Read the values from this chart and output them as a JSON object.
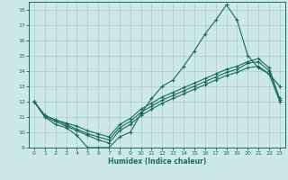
{
  "xlabel": "Humidex (Indice chaleur)",
  "bg_color": "#cce8e8",
  "grid_color": "#aacccc",
  "line_color": "#1a6b5a",
  "xlim": [
    -0.5,
    23.5
  ],
  "ylim": [
    9,
    18.5
  ],
  "yticks": [
    9,
    10,
    11,
    12,
    13,
    14,
    15,
    16,
    17,
    18
  ],
  "xticks": [
    0,
    1,
    2,
    3,
    4,
    5,
    6,
    7,
    8,
    9,
    10,
    11,
    12,
    13,
    14,
    15,
    16,
    17,
    18,
    19,
    20,
    21,
    22,
    23
  ],
  "series_main": {
    "x": [
      0,
      1,
      2,
      3,
      4,
      5,
      6,
      7,
      8,
      9,
      10,
      11,
      12,
      13,
      14,
      15,
      16,
      17,
      18,
      19,
      20,
      21,
      22,
      23
    ],
    "y": [
      12,
      11.0,
      10.5,
      10.3,
      9.8,
      9.0,
      9.0,
      9.0,
      9.7,
      10.0,
      11.2,
      12.2,
      13.0,
      13.4,
      14.3,
      15.3,
      16.4,
      17.3,
      18.3,
      17.3,
      15.0,
      14.2,
      13.8,
      13.0
    ]
  },
  "series_lines": [
    {
      "x": [
        0,
        1,
        2,
        3,
        4,
        5,
        6,
        7,
        8,
        9,
        10,
        11,
        12,
        13,
        14,
        15,
        16,
        17,
        18,
        19,
        20,
        21,
        22,
        23
      ],
      "y": [
        12,
        11.1,
        10.8,
        10.6,
        10.4,
        10.1,
        9.9,
        9.7,
        10.5,
        10.9,
        11.5,
        11.9,
        12.3,
        12.6,
        12.9,
        13.2,
        13.5,
        13.8,
        14.1,
        14.3,
        14.6,
        14.8,
        14.2,
        12.1
      ]
    },
    {
      "x": [
        0,
        1,
        2,
        3,
        4,
        5,
        6,
        7,
        8,
        9,
        10,
        11,
        12,
        13,
        14,
        15,
        16,
        17,
        18,
        19,
        20,
        21,
        22,
        23
      ],
      "y": [
        12,
        11.1,
        10.8,
        10.5,
        10.2,
        9.9,
        9.7,
        9.5,
        10.3,
        10.7,
        11.3,
        11.7,
        12.1,
        12.4,
        12.7,
        13.0,
        13.3,
        13.6,
        13.9,
        14.1,
        14.5,
        14.6,
        14.0,
        12.2
      ]
    },
    {
      "x": [
        0,
        1,
        2,
        3,
        4,
        5,
        6,
        7,
        8,
        9,
        10,
        11,
        12,
        13,
        14,
        15,
        16,
        17,
        18,
        19,
        20,
        21,
        22,
        23
      ],
      "y": [
        12,
        11.0,
        10.7,
        10.4,
        10.1,
        9.8,
        9.5,
        9.3,
        10.1,
        10.5,
        11.1,
        11.5,
        11.9,
        12.2,
        12.5,
        12.8,
        13.1,
        13.4,
        13.7,
        13.9,
        14.2,
        14.3,
        13.8,
        12.0
      ]
    }
  ]
}
